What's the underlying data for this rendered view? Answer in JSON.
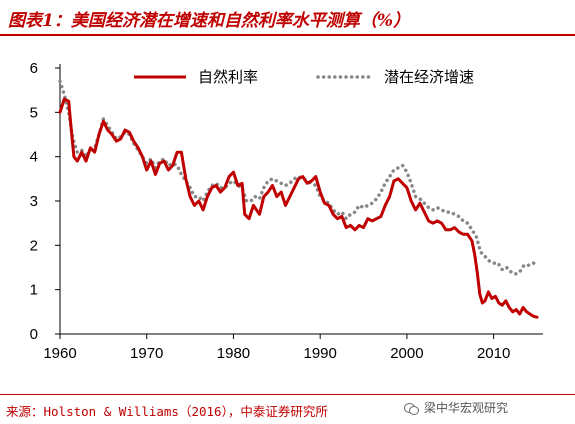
{
  "title": "图表1：美国经济潜在增速和自然利率水平测算（%）",
  "source": "来源：Holston & Williams（2016），中泰证券研究所",
  "watermark": "梁中华宏观研究",
  "colors": {
    "natural_rate": "#c00000",
    "potential_growth": "#888888",
    "accent": "#c00000"
  },
  "chart_data": {
    "type": "line",
    "xlim": [
      1960,
      2015
    ],
    "ylim": [
      0,
      6
    ],
    "x_ticks": [
      1960,
      1970,
      1980,
      1990,
      2000,
      2010
    ],
    "y_ticks": [
      0,
      1,
      2,
      3,
      4,
      5,
      6
    ],
    "grid": false,
    "legend_position": "top",
    "series": [
      {
        "name": "自然利率",
        "style": "solid",
        "points": [
          [
            1960.0,
            5.0
          ],
          [
            1960.5,
            5.3
          ],
          [
            1961.0,
            5.25
          ],
          [
            1961.3,
            4.6
          ],
          [
            1961.6,
            4.0
          ],
          [
            1962.0,
            3.9
          ],
          [
            1962.5,
            4.1
          ],
          [
            1963.0,
            3.9
          ],
          [
            1963.5,
            4.2
          ],
          [
            1964.0,
            4.1
          ],
          [
            1964.5,
            4.5
          ],
          [
            1965.0,
            4.8
          ],
          [
            1965.5,
            4.6
          ],
          [
            1966.0,
            4.5
          ],
          [
            1966.5,
            4.35
          ],
          [
            1967.0,
            4.4
          ],
          [
            1967.5,
            4.6
          ],
          [
            1968.0,
            4.55
          ],
          [
            1968.5,
            4.35
          ],
          [
            1969.0,
            4.2
          ],
          [
            1969.5,
            4.0
          ],
          [
            1970.0,
            3.7
          ],
          [
            1970.5,
            3.9
          ],
          [
            1971.0,
            3.6
          ],
          [
            1971.5,
            3.85
          ],
          [
            1972.0,
            3.9
          ],
          [
            1972.5,
            3.7
          ],
          [
            1973.0,
            3.8
          ],
          [
            1973.5,
            4.1
          ],
          [
            1974.0,
            4.1
          ],
          [
            1974.5,
            3.5
          ],
          [
            1975.0,
            3.1
          ],
          [
            1975.5,
            2.9
          ],
          [
            1976.0,
            3.0
          ],
          [
            1976.5,
            2.8
          ],
          [
            1977.0,
            3.1
          ],
          [
            1977.5,
            3.3
          ],
          [
            1978.0,
            3.35
          ],
          [
            1978.5,
            3.2
          ],
          [
            1979.0,
            3.3
          ],
          [
            1979.5,
            3.55
          ],
          [
            1980.0,
            3.65
          ],
          [
            1980.5,
            3.35
          ],
          [
            1981.0,
            3.4
          ],
          [
            1981.3,
            2.7
          ],
          [
            1981.8,
            2.6
          ],
          [
            1982.3,
            2.9
          ],
          [
            1983.0,
            2.7
          ],
          [
            1983.5,
            3.1
          ],
          [
            1984.0,
            3.2
          ],
          [
            1984.5,
            3.35
          ],
          [
            1985.0,
            3.1
          ],
          [
            1985.5,
            3.2
          ],
          [
            1986.0,
            2.9
          ],
          [
            1986.5,
            3.1
          ],
          [
            1987.0,
            3.3
          ],
          [
            1987.5,
            3.5
          ],
          [
            1988.0,
            3.55
          ],
          [
            1988.5,
            3.4
          ],
          [
            1989.0,
            3.45
          ],
          [
            1989.5,
            3.55
          ],
          [
            1990.0,
            3.2
          ],
          [
            1990.5,
            2.95
          ],
          [
            1991.0,
            2.9
          ],
          [
            1991.5,
            2.7
          ],
          [
            1992.0,
            2.6
          ],
          [
            1992.5,
            2.65
          ],
          [
            1993.0,
            2.4
          ],
          [
            1993.5,
            2.45
          ],
          [
            1994.0,
            2.35
          ],
          [
            1994.5,
            2.45
          ],
          [
            1995.0,
            2.4
          ],
          [
            1995.5,
            2.6
          ],
          [
            1996.0,
            2.55
          ],
          [
            1996.5,
            2.6
          ],
          [
            1997.0,
            2.65
          ],
          [
            1997.5,
            2.9
          ],
          [
            1998.0,
            3.1
          ],
          [
            1998.5,
            3.45
          ],
          [
            1999.0,
            3.5
          ],
          [
            1999.5,
            3.4
          ],
          [
            2000.0,
            3.3
          ],
          [
            2000.5,
            3.0
          ],
          [
            2001.0,
            2.8
          ],
          [
            2001.5,
            2.95
          ],
          [
            2002.0,
            2.75
          ],
          [
            2002.5,
            2.55
          ],
          [
            2003.0,
            2.5
          ],
          [
            2003.5,
            2.55
          ],
          [
            2004.0,
            2.5
          ],
          [
            2004.5,
            2.35
          ],
          [
            2005.0,
            2.35
          ],
          [
            2005.5,
            2.4
          ],
          [
            2006.0,
            2.3
          ],
          [
            2006.5,
            2.25
          ],
          [
            2007.0,
            2.25
          ],
          [
            2007.5,
            2.1
          ],
          [
            2007.8,
            1.8
          ],
          [
            2008.1,
            1.4
          ],
          [
            2008.4,
            0.9
          ],
          [
            2008.7,
            0.7
          ],
          [
            2009.0,
            0.75
          ],
          [
            2009.4,
            0.95
          ],
          [
            2009.8,
            0.8
          ],
          [
            2010.2,
            0.85
          ],
          [
            2010.6,
            0.7
          ],
          [
            2011.0,
            0.65
          ],
          [
            2011.4,
            0.75
          ],
          [
            2011.8,
            0.6
          ],
          [
            2012.2,
            0.5
          ],
          [
            2012.6,
            0.55
          ],
          [
            2013.0,
            0.45
          ],
          [
            2013.4,
            0.6
          ],
          [
            2013.8,
            0.5
          ],
          [
            2014.2,
            0.45
          ],
          [
            2014.6,
            0.4
          ],
          [
            2015.0,
            0.38
          ]
        ]
      },
      {
        "name": "潜在经济增速",
        "style": "dotted",
        "points": [
          [
            1960.0,
            5.7
          ],
          [
            1960.5,
            5.4
          ],
          [
            1961.0,
            5.0
          ],
          [
            1961.5,
            4.4
          ],
          [
            1962.0,
            4.1
          ],
          [
            1962.5,
            4.15
          ],
          [
            1963.0,
            4.0
          ],
          [
            1963.5,
            4.15
          ],
          [
            1964.0,
            4.2
          ],
          [
            1964.5,
            4.5
          ],
          [
            1965.0,
            4.85
          ],
          [
            1965.5,
            4.7
          ],
          [
            1966.0,
            4.55
          ],
          [
            1966.5,
            4.4
          ],
          [
            1967.0,
            4.45
          ],
          [
            1967.5,
            4.55
          ],
          [
            1968.0,
            4.5
          ],
          [
            1968.5,
            4.3
          ],
          [
            1969.0,
            4.15
          ],
          [
            1969.5,
            4.0
          ],
          [
            1970.0,
            3.85
          ],
          [
            1970.5,
            3.95
          ],
          [
            1971.0,
            3.75
          ],
          [
            1971.5,
            3.9
          ],
          [
            1972.0,
            3.95
          ],
          [
            1972.5,
            3.8
          ],
          [
            1973.0,
            3.85
          ],
          [
            1973.5,
            3.8
          ],
          [
            1974.0,
            3.6
          ],
          [
            1974.5,
            3.45
          ],
          [
            1975.0,
            3.3
          ],
          [
            1975.5,
            3.1
          ],
          [
            1976.0,
            3.1
          ],
          [
            1976.5,
            3.0
          ],
          [
            1977.0,
            3.2
          ],
          [
            1977.5,
            3.35
          ],
          [
            1978.0,
            3.4
          ],
          [
            1978.5,
            3.3
          ],
          [
            1979.0,
            3.3
          ],
          [
            1979.5,
            3.4
          ],
          [
            1980.0,
            3.45
          ],
          [
            1980.5,
            3.35
          ],
          [
            1981.0,
            3.3
          ],
          [
            1981.5,
            3.0
          ],
          [
            1982.0,
            3.0
          ],
          [
            1982.5,
            3.1
          ],
          [
            1983.0,
            3.05
          ],
          [
            1983.5,
            3.3
          ],
          [
            1984.0,
            3.45
          ],
          [
            1984.5,
            3.5
          ],
          [
            1985.0,
            3.45
          ],
          [
            1985.5,
            3.4
          ],
          [
            1986.0,
            3.35
          ],
          [
            1986.5,
            3.4
          ],
          [
            1987.0,
            3.5
          ],
          [
            1987.5,
            3.55
          ],
          [
            1988.0,
            3.5
          ],
          [
            1988.5,
            3.45
          ],
          [
            1989.0,
            3.4
          ],
          [
            1989.5,
            3.35
          ],
          [
            1990.0,
            3.1
          ],
          [
            1990.5,
            3.0
          ],
          [
            1991.0,
            2.95
          ],
          [
            1991.5,
            2.8
          ],
          [
            1992.0,
            2.7
          ],
          [
            1992.5,
            2.75
          ],
          [
            1993.0,
            2.6
          ],
          [
            1993.5,
            2.7
          ],
          [
            1994.0,
            2.75
          ],
          [
            1994.5,
            2.9
          ],
          [
            1995.0,
            2.85
          ],
          [
            1995.5,
            2.9
          ],
          [
            1996.0,
            2.95
          ],
          [
            1996.5,
            3.05
          ],
          [
            1997.0,
            3.2
          ],
          [
            1997.5,
            3.4
          ],
          [
            1998.0,
            3.55
          ],
          [
            1998.5,
            3.7
          ],
          [
            1999.0,
            3.75
          ],
          [
            1999.5,
            3.8
          ],
          [
            2000.0,
            3.65
          ],
          [
            2000.5,
            3.4
          ],
          [
            2001.0,
            3.1
          ],
          [
            2001.5,
            3.05
          ],
          [
            2002.0,
            2.95
          ],
          [
            2002.5,
            2.85
          ],
          [
            2003.0,
            2.8
          ],
          [
            2003.5,
            2.85
          ],
          [
            2004.0,
            2.8
          ],
          [
            2004.5,
            2.75
          ],
          [
            2005.0,
            2.75
          ],
          [
            2005.5,
            2.7
          ],
          [
            2006.0,
            2.65
          ],
          [
            2006.5,
            2.55
          ],
          [
            2007.0,
            2.5
          ],
          [
            2007.5,
            2.35
          ],
          [
            2008.0,
            2.2
          ],
          [
            2008.5,
            1.85
          ],
          [
            2009.0,
            1.75
          ],
          [
            2009.5,
            1.65
          ],
          [
            2010.0,
            1.6
          ],
          [
            2010.5,
            1.6
          ],
          [
            2011.0,
            1.45
          ],
          [
            2011.5,
            1.5
          ],
          [
            2012.0,
            1.4
          ],
          [
            2012.5,
            1.35
          ],
          [
            2013.0,
            1.4
          ],
          [
            2013.5,
            1.55
          ],
          [
            2014.0,
            1.55
          ],
          [
            2014.5,
            1.6
          ],
          [
            2015.0,
            1.6
          ]
        ]
      }
    ]
  }
}
